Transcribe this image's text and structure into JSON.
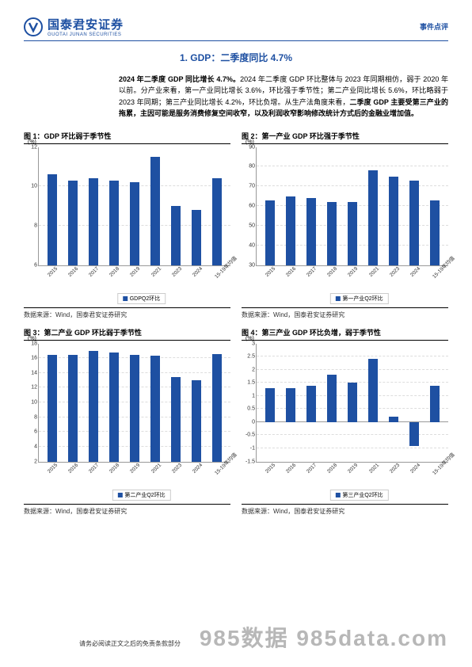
{
  "header": {
    "logo_cn": "国泰君安证券",
    "logo_en": "GUOTAI JUNAN SECURITIES",
    "right": "事件点评"
  },
  "section_title": "1.  GDP：二季度同比 4.7%",
  "body": {
    "p1_bold": "2024 年二季度 GDP 同比增长 4.7%。",
    "p1_rest": "2024 年二季度 GDP 环比整体与 2023 年同期相仿，弱于 2020 年以前。分产业来看，第一产业同比增长 3.6%，环比强于季节性；第二产业同比增长 5.6%，环比略弱于 2023 年同期；第三产业同比增长 4.2%，环比负增。从生产法角度来看，",
    "p1_bold2": "二季度 GDP 主要受第三产业的拖累，主因可能是服务消费修复空间收窄，以及利润收窄影响修改统计方式后的金融业增加值。"
  },
  "charts": [
    {
      "title": "图 1：GDP 环比弱于季节性",
      "y_unit": "(%)",
      "legend": "GDPQ2环比",
      "source": "数据来源：Wind，国泰君安证券研究",
      "categories": [
        "2015",
        "2016",
        "2017",
        "2018",
        "2019",
        "2021",
        "2023",
        "2024",
        "15-19年均值"
      ],
      "values": [
        10.6,
        10.3,
        10.4,
        10.3,
        10.2,
        11.5,
        9.0,
        8.8,
        10.4
      ],
      "ylim": [
        6,
        12
      ],
      "yticks": [
        6,
        8,
        10,
        12
      ],
      "bar_color": "#1e50a2"
    },
    {
      "title": "图 2：第一产业 GDP 环比强于季节性",
      "y_unit": "(%)",
      "legend": "第一产业Q2环比",
      "source": "数据来源：Wind，国泰君安证券研究",
      "categories": [
        "2015",
        "2016",
        "2017",
        "2018",
        "2019",
        "2021",
        "2023",
        "2024",
        "15-19年均值"
      ],
      "values": [
        63,
        65,
        64,
        62,
        62,
        78,
        75,
        73,
        63
      ],
      "ylim": [
        30,
        90
      ],
      "yticks": [
        30,
        40,
        50,
        60,
        70,
        80,
        90
      ],
      "bar_color": "#1e50a2"
    },
    {
      "title": "图 3：第二产业 GDP 环比弱于季节性",
      "y_unit": "(%)",
      "legend": "第二产业Q2环比",
      "source": "数据来源：Wind，国泰君安证券研究",
      "categories": [
        "2015",
        "2016",
        "2017",
        "2018",
        "2019",
        "2021",
        "2023",
        "2024",
        "15-19年均值"
      ],
      "values": [
        16.5,
        16.4,
        17.0,
        16.8,
        16.5,
        16.3,
        13.4,
        13.0,
        16.6
      ],
      "ylim": [
        2,
        18
      ],
      "yticks": [
        2,
        4,
        6,
        8,
        10,
        12,
        14,
        16,
        18
      ],
      "bar_color": "#1e50a2"
    },
    {
      "title": "图 4：第三产业 GDP 环比负增，弱于季节性",
      "y_unit": "(%)",
      "legend": "第三产业Q2环比",
      "source": "数据来源：Wind，国泰君安证券研究",
      "categories": [
        "2015",
        "2016",
        "2017",
        "2018",
        "2019",
        "2021",
        "2023",
        "2024",
        "15-19年均值"
      ],
      "values": [
        1.3,
        1.3,
        1.4,
        1.8,
        1.5,
        2.4,
        0.2,
        -0.9,
        1.4
      ],
      "ylim": [
        -1.5,
        3.0
      ],
      "yticks": [
        -1.5,
        -1.0,
        -0.5,
        0.0,
        0.5,
        1.0,
        1.5,
        2.0,
        2.5,
        3.0
      ],
      "bar_color": "#1e50a2"
    }
  ],
  "watermark": "985数据 985data.com",
  "footer": "请务必阅读正文之后的免责条款部分"
}
